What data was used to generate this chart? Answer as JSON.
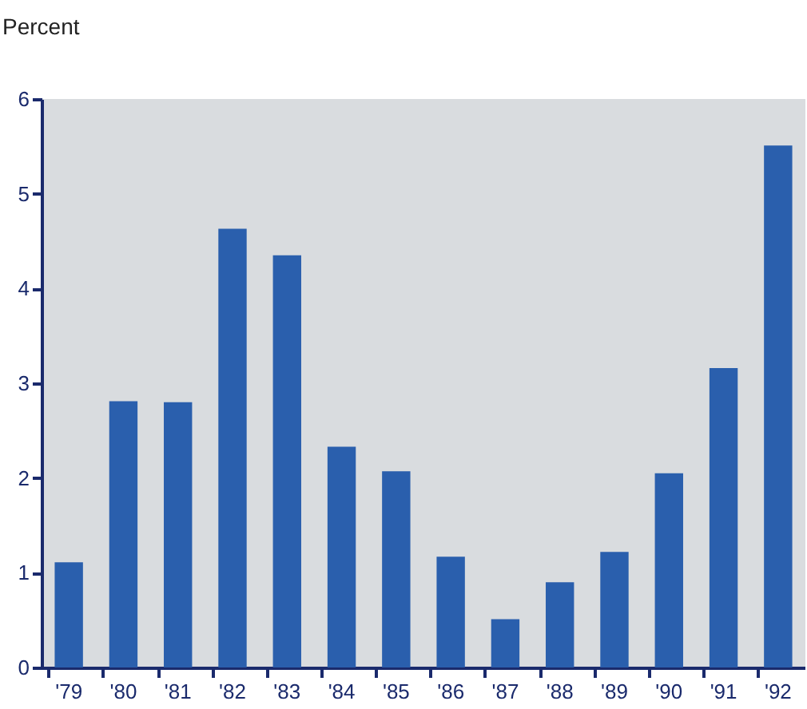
{
  "chart_data": {
    "type": "bar",
    "ylabel": "Percent",
    "categories": [
      "'79",
      "'80",
      "'81",
      "'82",
      "'83",
      "'84",
      "'85",
      "'86",
      "'87",
      "'88",
      "'89",
      "'90",
      "'91",
      "'92"
    ],
    "values": [
      1.11,
      2.81,
      2.8,
      4.63,
      4.35,
      2.33,
      2.07,
      1.17,
      0.51,
      0.9,
      1.22,
      2.05,
      3.16,
      5.51
    ],
    "color": "#2a5fad",
    "ylim": [
      0,
      6
    ],
    "yticks": [
      0,
      1,
      2,
      3,
      4,
      5,
      6
    ],
    "grid": false
  }
}
